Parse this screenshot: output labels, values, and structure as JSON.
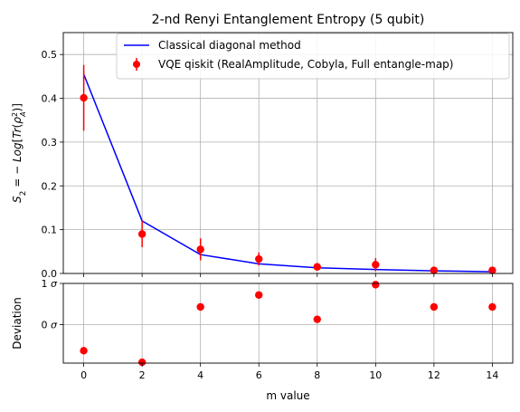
{
  "chart_data": [
    {
      "type": "line",
      "title": "2-nd Renyi Entanglement Entropy (5 qubit)",
      "xlabel": "",
      "ylabel": "S_2 = −Log[Tr(ρ_A^2)]",
      "ylabel_parts": {
        "lhs": "S",
        "lhs_sub": "2",
        "mid": " = − ",
        "fn": "Log",
        "open": "[",
        "tr": "Tr",
        "arg_open": "(",
        "rho": "ρ",
        "rho_sup": "2",
        "rho_sub": "A",
        "arg_close": ")",
        "close": "]"
      },
      "xlim": [
        -0.7,
        14.7
      ],
      "ylim": [
        0,
        0.55
      ],
      "yticks": [
        "0.0",
        "0.1",
        "0.2",
        "0.3",
        "0.4",
        "0.5"
      ],
      "grid": true,
      "legend_position": "top-right",
      "series": [
        {
          "name": "Classical diagonal method",
          "kind": "line",
          "color": "#0000ff",
          "x": [
            0,
            2,
            4,
            6,
            8,
            10,
            12,
            14
          ],
          "y": [
            0.455,
            0.12,
            0.043,
            0.022,
            0.013,
            0.009,
            0.006,
            0.004
          ]
        },
        {
          "name": "VQE qiskit (RealAmplitude, Cobyla, Full entangle-map)",
          "kind": "errorbar",
          "color": "#ff0000",
          "x": [
            0,
            2,
            4,
            6,
            8,
            10,
            12,
            14
          ],
          "y": [
            0.401,
            0.09,
            0.055,
            0.033,
            0.015,
            0.02,
            0.007,
            0.007
          ],
          "yerr": [
            0.075,
            0.03,
            0.025,
            0.015,
            0.005,
            0.015,
            0.004,
            0.003
          ]
        }
      ]
    },
    {
      "type": "scatter",
      "xlabel": "m value",
      "ylabel": "Deviation",
      "xlim": [
        -0.7,
        14.7
      ],
      "ylim": [
        -0.93,
        1.0
      ],
      "xticks": [
        "0",
        "2",
        "4",
        "6",
        "8",
        "10",
        "12",
        "14"
      ],
      "yticks": [
        {
          "value": 0,
          "num": "0",
          "unit": "σ"
        },
        {
          "value": 1,
          "num": "1",
          "unit": "σ"
        }
      ],
      "grid": true,
      "series": [
        {
          "kind": "points",
          "color": "#ff0000",
          "x": [
            0,
            2,
            4,
            6,
            8,
            10,
            12,
            14
          ],
          "y": [
            -0.63,
            -0.91,
            0.43,
            0.72,
            0.13,
            0.97,
            0.43,
            0.43
          ]
        }
      ]
    }
  ]
}
